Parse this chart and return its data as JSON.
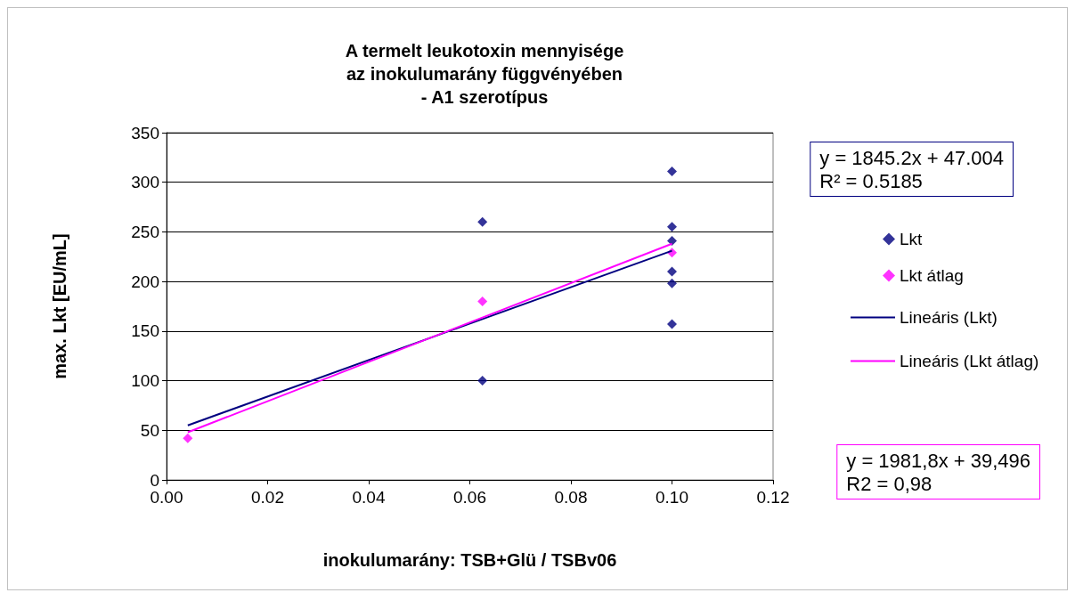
{
  "chart_data": {
    "type": "scatter",
    "title": "A termelt leukotoxin mennyisége\naz inokulumarány függvényében\n- A1 szerotípus",
    "xlabel": "inokulumarány: TSB+Glü / TSBv06",
    "ylabel": "max. Lkt [EU/mL]",
    "series": [
      {
        "name": "Lkt",
        "color": "#000080",
        "x": [
          0.0625,
          0.0625,
          0.1,
          0.1,
          0.1,
          0.1,
          0.1,
          0.1
        ],
        "values": [
          260,
          100,
          311,
          255,
          241,
          210,
          198,
          157
        ]
      },
      {
        "name": "Lkt átlag",
        "color": "#ff00ff",
        "x": [
          0.0042,
          0.0625,
          0.1
        ],
        "values": [
          42,
          180,
          229
        ]
      },
      {
        "name": "Lineáris (Lkt)",
        "color": "#000080",
        "type": "line",
        "marker": "none",
        "x": [
          0.0042,
          0.1
        ],
        "values": [
          55,
          231
        ]
      },
      {
        "name": "Lineáris (Lkt átlag)",
        "color": "#ff00ff",
        "type": "line",
        "marker": "none",
        "x": [
          0.0042,
          0.1
        ],
        "values": [
          48,
          238
        ]
      }
    ],
    "annotations": [
      "y = 1845.2x + 47.004\nR² = 0.5185",
      "y = 1981,8x + 39,496\nR2 = 0,98"
    ],
    "xlim": [
      0,
      0.12
    ],
    "xticks": [
      {
        "value": 0,
        "label": "0.00"
      },
      {
        "value": 0.02,
        "label": "0.02"
      },
      {
        "value": 0.04,
        "label": "0.04"
      },
      {
        "value": 0.06,
        "label": "0.06"
      },
      {
        "value": 0.08,
        "label": "0.08"
      },
      {
        "value": 0.1,
        "label": "0.10"
      },
      {
        "value": 0.12,
        "label": "0.12"
      }
    ],
    "ylim": [
      0,
      350
    ],
    "yticks": [
      0,
      50,
      100,
      150,
      200,
      250,
      300,
      350
    ],
    "grid": "y",
    "legend": "right",
    "marker": "diamond"
  }
}
